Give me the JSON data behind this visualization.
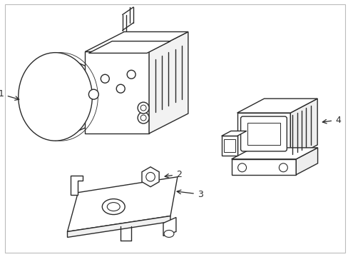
{
  "background_color": "#ffffff",
  "line_color": "#2a2a2a",
  "line_width": 1.0,
  "figsize": [
    4.89,
    3.6
  ],
  "dpi": 100,
  "border_color": "#bbbbbb"
}
